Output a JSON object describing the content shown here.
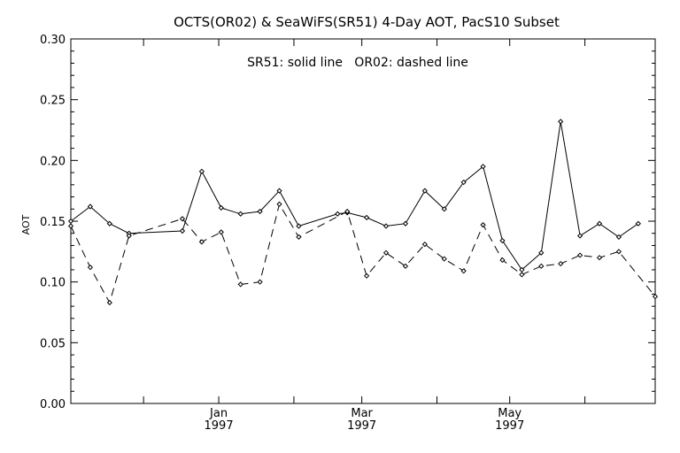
{
  "chart_data": {
    "type": "line",
    "title": "OCTS(OR02) & SeaWiFS(SR51) 4-Day AOT, PacS10 Subset",
    "annotation": "SR51: solid line   OR02: dashed line",
    "ylabel": "AOT",
    "xlabel": "",
    "ylim": [
      0.0,
      0.3
    ],
    "xlim": [
      "1996-11-01",
      "1997-06-30"
    ],
    "y_ticks": [
      "0.00",
      "0.05",
      "0.10",
      "0.15",
      "0.20",
      "0.25",
      "0.30"
    ],
    "x_ticks": [
      {
        "date": "1997-01-01",
        "month": "Jan",
        "year": "1997"
      },
      {
        "date": "1997-03-01",
        "month": "Mar",
        "year": "1997"
      },
      {
        "date": "1997-05-01",
        "month": "May",
        "year": "1997"
      }
    ],
    "grid": false,
    "series": [
      {
        "name": "SR51",
        "line_style": "solid",
        "color": "#000000",
        "points": [
          {
            "x": "1996-11-01",
            "y": 0.15
          },
          {
            "x": "1996-11-09",
            "y": 0.162
          },
          {
            "x": "1996-11-17",
            "y": 0.148
          },
          {
            "x": "1996-11-25",
            "y": 0.14
          },
          {
            "x": "1996-12-17",
            "y": 0.142
          },
          {
            "x": "1996-12-25",
            "y": 0.191
          },
          {
            "x": "1997-01-02",
            "y": 0.161
          },
          {
            "x": "1997-01-10",
            "y": 0.156
          },
          {
            "x": "1997-01-18",
            "y": 0.158
          },
          {
            "x": "1997-01-26",
            "y": 0.175
          },
          {
            "x": "1997-02-03",
            "y": 0.146
          },
          {
            "x": "1997-02-19",
            "y": 0.156
          },
          {
            "x": "1997-02-23",
            "y": 0.157
          },
          {
            "x": "1997-03-03",
            "y": 0.153
          },
          {
            "x": "1997-03-11",
            "y": 0.146
          },
          {
            "x": "1997-03-19",
            "y": 0.148
          },
          {
            "x": "1997-03-27",
            "y": 0.175
          },
          {
            "x": "1997-04-04",
            "y": 0.16
          },
          {
            "x": "1997-04-12",
            "y": 0.182
          },
          {
            "x": "1997-04-20",
            "y": 0.195
          },
          {
            "x": "1997-04-28",
            "y": 0.134
          },
          {
            "x": "1997-05-06",
            "y": 0.11
          },
          {
            "x": "1997-05-14",
            "y": 0.124
          },
          {
            "x": "1997-05-22",
            "y": 0.232
          },
          {
            "x": "1997-05-30",
            "y": 0.138
          },
          {
            "x": "1997-06-07",
            "y": 0.148
          },
          {
            "x": "1997-06-15",
            "y": 0.137
          },
          {
            "x": "1997-06-23",
            "y": 0.148
          }
        ]
      },
      {
        "name": "OR02",
        "line_style": "dashed",
        "color": "#000000",
        "points": [
          {
            "x": "1996-11-01",
            "y": 0.146
          },
          {
            "x": "1996-11-09",
            "y": 0.112
          },
          {
            "x": "1996-11-17",
            "y": 0.083
          },
          {
            "x": "1996-11-25",
            "y": 0.138
          },
          {
            "x": "1996-12-17",
            "y": 0.152
          },
          {
            "x": "1996-12-25",
            "y": 0.133
          },
          {
            "x": "1997-01-02",
            "y": 0.141
          },
          {
            "x": "1997-01-10",
            "y": 0.098
          },
          {
            "x": "1997-01-18",
            "y": 0.1
          },
          {
            "x": "1997-01-26",
            "y": 0.164
          },
          {
            "x": "1997-02-03",
            "y": 0.137
          },
          {
            "x": "1997-02-23",
            "y": 0.158
          },
          {
            "x": "1997-03-03",
            "y": 0.105
          },
          {
            "x": "1997-03-11",
            "y": 0.124
          },
          {
            "x": "1997-03-19",
            "y": 0.113
          },
          {
            "x": "1997-03-27",
            "y": 0.131
          },
          {
            "x": "1997-04-04",
            "y": 0.119
          },
          {
            "x": "1997-04-12",
            "y": 0.109
          },
          {
            "x": "1997-04-20",
            "y": 0.147
          },
          {
            "x": "1997-04-28",
            "y": 0.118
          },
          {
            "x": "1997-05-06",
            "y": 0.106
          },
          {
            "x": "1997-05-14",
            "y": 0.113
          },
          {
            "x": "1997-05-22",
            "y": 0.115
          },
          {
            "x": "1997-05-30",
            "y": 0.122
          },
          {
            "x": "1997-06-07",
            "y": 0.12
          },
          {
            "x": "1997-06-15",
            "y": 0.125
          },
          {
            "x": "1997-06-30",
            "y": 0.088
          }
        ]
      }
    ]
  }
}
